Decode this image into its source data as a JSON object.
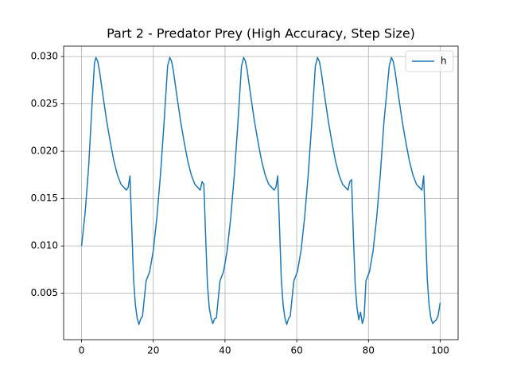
{
  "chart_data": {
    "type": "line",
    "title": "Part 2 - Predator Prey (High Accuracy, Step Size)",
    "x": [
      0,
      1,
      2,
      3,
      3.6,
      4,
      4.5,
      5,
      6,
      7,
      8,
      9,
      10,
      11,
      12.5,
      13,
      13.5,
      14,
      14.5,
      15,
      15.5,
      16,
      16.5,
      17,
      18,
      19,
      20,
      21,
      22,
      23,
      24,
      24.6,
      25.1,
      25.6,
      26.6,
      27.6,
      28.6,
      29.6,
      30.6,
      31.6,
      33.1,
      33.6,
      34.1,
      34.6,
      35.1,
      35.6,
      36.1,
      36.6,
      37.1,
      37.6,
      38.6,
      39.6,
      40.6,
      41.6,
      42.6,
      43.6,
      44.6,
      45.2,
      45.7,
      46.2,
      47.2,
      48.2,
      49.2,
      50.2,
      51.2,
      52.2,
      53.7,
      54.2,
      54.7,
      55.2,
      55.7,
      56.2,
      56.7,
      57.2,
      57.7,
      58.2,
      59.2,
      60.2,
      61.2,
      62.2,
      63.2,
      64.2,
      65.2,
      65.8,
      66.3,
      66.8,
      67.8,
      68.8,
      69.8,
      70.8,
      71.8,
      72.8,
      74.3,
      74.8,
      75.3,
      75.8,
      76.3,
      76.8,
      77.3,
      77.8,
      78.3,
      78.8,
      79.3,
      80.3,
      81.3,
      82.3,
      83.3,
      84.3,
      85.8,
      86.4,
      86.9,
      87.4,
      88.4,
      89.4,
      90.4,
      91.4,
      92.4,
      93.4,
      94.9,
      95.4,
      95.9,
      96.4,
      96.9,
      97.4,
      97.9,
      98.4,
      98.9,
      99.4,
      100
    ],
    "series": [
      {
        "name": "h",
        "color": "#1f77b4",
        "values": [
          0.01,
          0.0135,
          0.0185,
          0.0255,
          0.0293,
          0.0299,
          0.0295,
          0.0285,
          0.0258,
          0.0232,
          0.021,
          0.019,
          0.0175,
          0.0165,
          0.0159,
          0.0162,
          0.0174,
          0.012,
          0.0065,
          0.0038,
          0.0024,
          0.0017,
          0.0023,
          0.0026,
          0.0063,
          0.0073,
          0.0095,
          0.013,
          0.0175,
          0.023,
          0.029,
          0.0299,
          0.0295,
          0.0285,
          0.0258,
          0.0232,
          0.021,
          0.019,
          0.0175,
          0.0165,
          0.0159,
          0.0168,
          0.0165,
          0.011,
          0.006,
          0.0035,
          0.0024,
          0.0018,
          0.0023,
          0.0024,
          0.0063,
          0.0073,
          0.0095,
          0.013,
          0.0175,
          0.023,
          0.029,
          0.0299,
          0.0295,
          0.0285,
          0.0258,
          0.0232,
          0.021,
          0.019,
          0.0175,
          0.0165,
          0.0159,
          0.0162,
          0.0174,
          0.012,
          0.0065,
          0.0038,
          0.0024,
          0.0017,
          0.0023,
          0.0026,
          0.0063,
          0.0073,
          0.0095,
          0.013,
          0.0175,
          0.023,
          0.029,
          0.0299,
          0.0295,
          0.0285,
          0.0258,
          0.0232,
          0.021,
          0.019,
          0.0175,
          0.0165,
          0.0159,
          0.0168,
          0.017,
          0.011,
          0.006,
          0.0035,
          0.0022,
          0.003,
          0.0018,
          0.0025,
          0.0063,
          0.0073,
          0.0095,
          0.013,
          0.0175,
          0.023,
          0.029,
          0.0299,
          0.0295,
          0.0285,
          0.0258,
          0.0232,
          0.021,
          0.019,
          0.0175,
          0.0165,
          0.0159,
          0.0174,
          0.012,
          0.0065,
          0.0038,
          0.0024,
          0.0018,
          0.002,
          0.0022,
          0.0026,
          0.004
        ]
      }
    ],
    "xlim": [
      -5,
      105
    ],
    "xticks": [
      0,
      20,
      40,
      60,
      80,
      100
    ],
    "ylim": [
      0.0001,
      0.0311
    ],
    "yticks": [
      0.005,
      {
        "value": 0.01,
        "label": "0.010"
      },
      0.015,
      {
        "value": 0.02,
        "label": "0.020"
      },
      0.025,
      {
        "value": 0.03,
        "label": "0.030"
      }
    ],
    "grid": true,
    "legend": "upper right"
  }
}
